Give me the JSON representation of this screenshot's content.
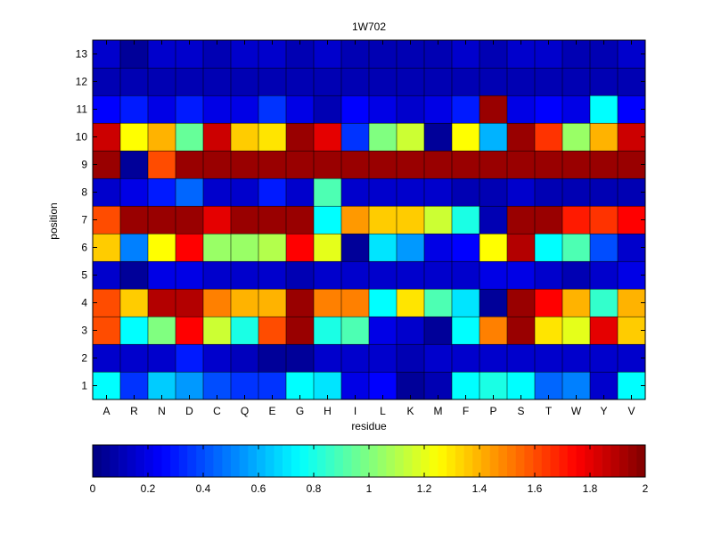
{
  "chart_data": {
    "type": "heatmap",
    "title": "1W702",
    "xlabel": "residue",
    "ylabel": "position",
    "categories": [
      "A",
      "R",
      "N",
      "D",
      "C",
      "Q",
      "E",
      "G",
      "H",
      "I",
      "L",
      "K",
      "M",
      "F",
      "P",
      "S",
      "T",
      "W",
      "Y",
      "V"
    ],
    "rows": [
      "1",
      "2",
      "3",
      "4",
      "5",
      "6",
      "7",
      "8",
      "9",
      "10",
      "11",
      "12",
      "13"
    ],
    "values": [
      [
        0.75,
        0.35,
        0.65,
        0.55,
        0.4,
        0.35,
        0.35,
        0.75,
        0.7,
        0.2,
        0.25,
        0.05,
        0.1,
        0.75,
        0.8,
        0.75,
        0.45,
        0.5,
        0.15,
        0.75
      ],
      [
        0.15,
        0.15,
        0.15,
        0.3,
        0.15,
        0.12,
        0.05,
        0.05,
        0.15,
        0.15,
        0.15,
        0.1,
        0.15,
        0.15,
        0.15,
        0.15,
        0.15,
        0.15,
        0.15,
        0.15
      ],
      [
        1.6,
        0.75,
        1.0,
        1.75,
        1.15,
        0.8,
        1.6,
        1.95,
        0.8,
        0.9,
        0.2,
        0.15,
        0.05,
        0.75,
        1.5,
        1.95,
        1.3,
        1.2,
        1.8,
        1.35
      ],
      [
        1.6,
        1.35,
        1.9,
        1.9,
        1.5,
        1.4,
        1.4,
        1.95,
        1.5,
        1.5,
        0.75,
        1.3,
        0.9,
        0.7,
        0.05,
        1.95,
        1.75,
        1.4,
        0.85,
        1.4
      ],
      [
        0.15,
        0.05,
        0.2,
        0.2,
        0.15,
        0.15,
        0.15,
        0.1,
        0.15,
        0.15,
        0.15,
        0.15,
        0.15,
        0.15,
        0.2,
        0.2,
        0.15,
        0.1,
        0.15,
        0.2
      ],
      [
        1.35,
        0.5,
        1.25,
        1.75,
        1.05,
        1.05,
        1.1,
        1.75,
        1.2,
        0.05,
        0.7,
        0.55,
        0.2,
        0.25,
        1.25,
        1.9,
        0.75,
        0.9,
        0.4,
        0.15
      ],
      [
        1.6,
        1.95,
        1.95,
        1.95,
        1.8,
        1.95,
        1.95,
        1.95,
        0.75,
        1.45,
        1.35,
        1.35,
        1.15,
        0.8,
        0.1,
        1.95,
        1.95,
        1.7,
        1.65,
        1.75
      ],
      [
        0.15,
        0.2,
        0.3,
        0.45,
        0.15,
        0.15,
        0.3,
        0.15,
        0.9,
        0.15,
        0.15,
        0.15,
        0.15,
        0.1,
        0.1,
        0.15,
        0.1,
        0.1,
        0.1,
        0.1
      ],
      [
        1.95,
        0.05,
        1.6,
        1.95,
        1.95,
        1.95,
        1.95,
        1.95,
        1.95,
        1.95,
        1.95,
        1.95,
        1.95,
        1.95,
        1.95,
        1.95,
        1.95,
        1.95,
        1.95,
        1.95
      ],
      [
        1.85,
        1.25,
        1.4,
        0.95,
        1.85,
        1.35,
        1.3,
        1.95,
        1.8,
        0.35,
        1.0,
        1.15,
        0.05,
        1.25,
        0.6,
        1.95,
        1.65,
        1.05,
        1.4,
        1.85
      ],
      [
        0.25,
        0.3,
        0.2,
        0.3,
        0.2,
        0.2,
        0.35,
        0.2,
        0.1,
        0.25,
        0.2,
        0.15,
        0.2,
        0.3,
        1.95,
        0.2,
        0.25,
        0.2,
        0.75,
        0.25
      ],
      [
        0.1,
        0.1,
        0.1,
        0.1,
        0.1,
        0.1,
        0.1,
        0.1,
        0.1,
        0.1,
        0.1,
        0.1,
        0.1,
        0.1,
        0.1,
        0.1,
        0.1,
        0.1,
        0.1,
        0.1
      ],
      [
        0.15,
        0.05,
        0.15,
        0.15,
        0.1,
        0.15,
        0.15,
        0.1,
        0.15,
        0.1,
        0.1,
        0.1,
        0.1,
        0.15,
        0.1,
        0.15,
        0.15,
        0.1,
        0.1,
        0.15
      ]
    ],
    "colormap": "jet",
    "clim": [
      0,
      2
    ],
    "colorbar": {
      "orientation": "horizontal",
      "ticks": [
        "0",
        "0.2",
        "0.4",
        "0.6",
        "0.8",
        "1",
        "1.2",
        "1.4",
        "1.6",
        "1.8",
        "2"
      ]
    }
  }
}
